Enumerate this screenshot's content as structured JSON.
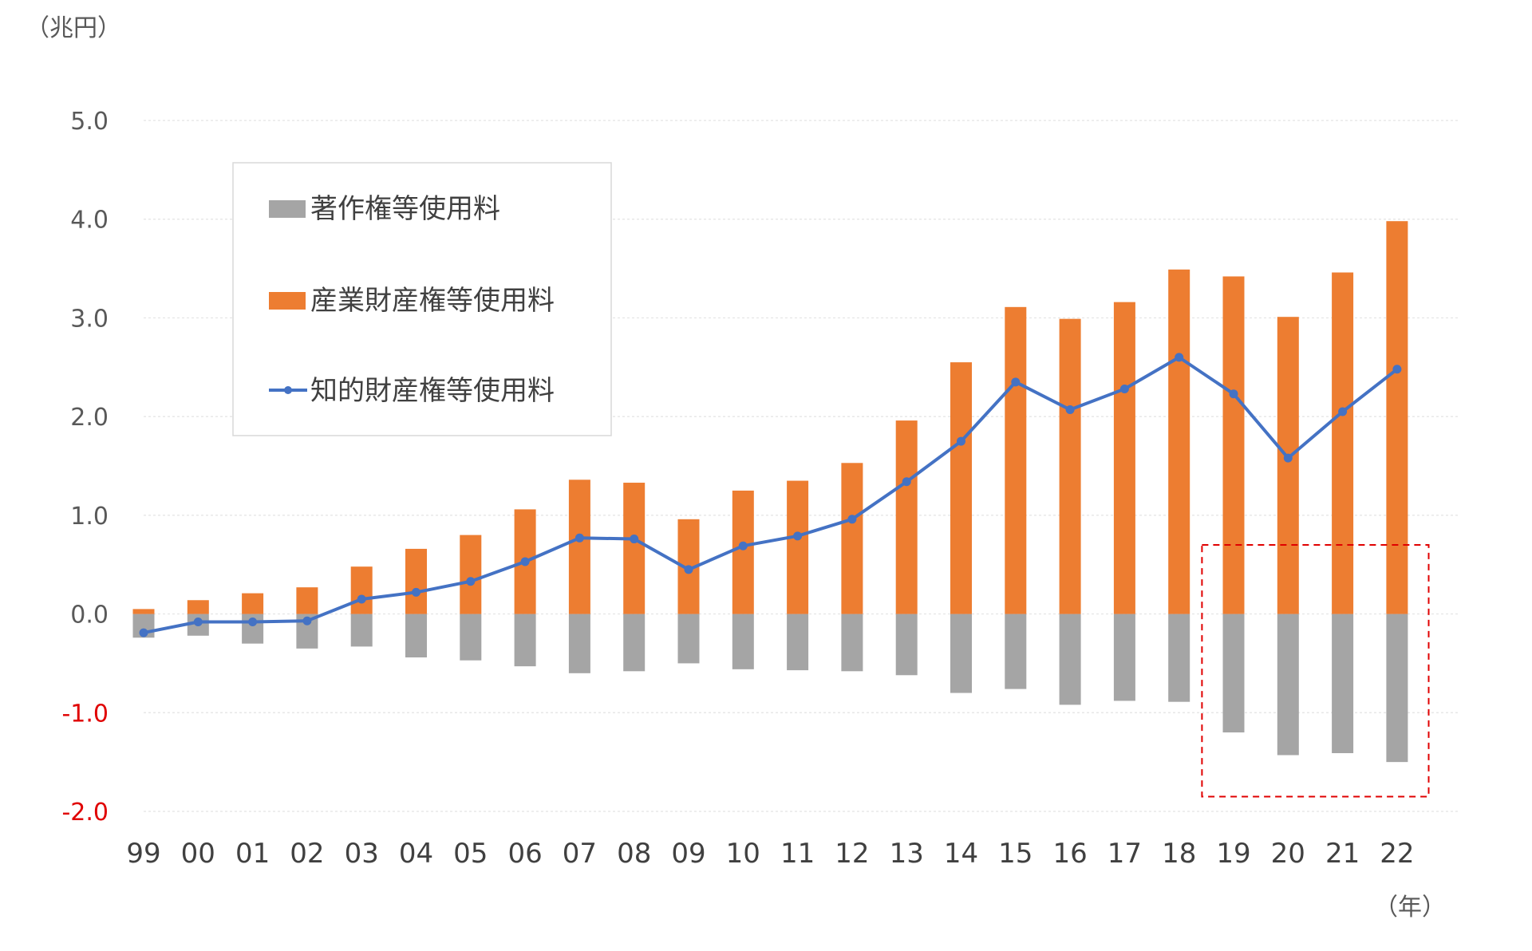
{
  "chart_data": {
    "type": "bar",
    "y_unit_label": "（兆円）",
    "x_unit_label": "（年）",
    "categories": [
      "99",
      "00",
      "01",
      "02",
      "03",
      "04",
      "05",
      "06",
      "07",
      "08",
      "09",
      "10",
      "11",
      "12",
      "13",
      "14",
      "15",
      "16",
      "17",
      "18",
      "19",
      "20",
      "21",
      "22"
    ],
    "ylim": [
      -2.0,
      5.0
    ],
    "yticks": [
      "5.0",
      "4.0",
      "3.0",
      "2.0",
      "1.0",
      "0.0",
      "-1.0",
      "-2.0"
    ],
    "grid": true,
    "legend_position": "top-left",
    "series": [
      {
        "name": "著作権等使用料",
        "type": "bar",
        "color": "#a5a5a5",
        "values": [
          -0.24,
          -0.22,
          -0.3,
          -0.35,
          -0.33,
          -0.44,
          -0.47,
          -0.53,
          -0.6,
          -0.58,
          -0.5,
          -0.56,
          -0.57,
          -0.58,
          -0.62,
          -0.8,
          -0.76,
          -0.92,
          -0.88,
          -0.89,
          -1.2,
          -1.43,
          -1.41,
          -1.5
        ]
      },
      {
        "name": "産業財産権等使用料",
        "type": "bar",
        "color": "#ed7d31",
        "values": [
          0.05,
          0.14,
          0.21,
          0.27,
          0.48,
          0.66,
          0.8,
          1.06,
          1.36,
          1.33,
          0.96,
          1.25,
          1.35,
          1.53,
          1.96,
          2.55,
          3.11,
          2.99,
          3.16,
          3.49,
          3.42,
          3.01,
          3.46,
          3.98
        ]
      },
      {
        "name": "知的財産権等使用料",
        "type": "line",
        "color": "#4472c4",
        "values": [
          -0.19,
          -0.08,
          -0.08,
          -0.07,
          0.15,
          0.22,
          0.33,
          0.53,
          0.77,
          0.76,
          0.45,
          0.69,
          0.79,
          0.96,
          1.34,
          1.75,
          2.35,
          2.07,
          2.28,
          2.6,
          2.23,
          1.58,
          2.05,
          2.48
        ]
      }
    ],
    "highlight": {
      "from_category": "19",
      "to_category": "22",
      "color": "#e00000"
    }
  }
}
